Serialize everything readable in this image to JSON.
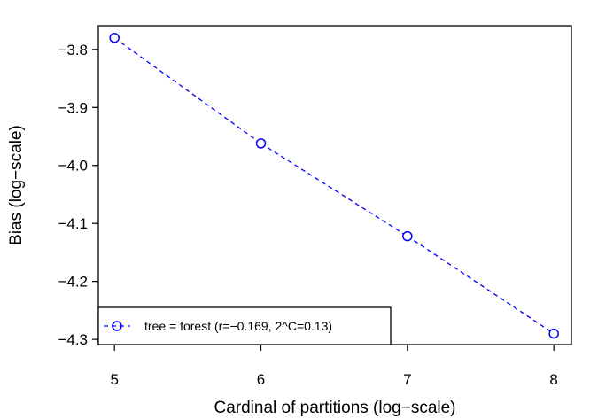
{
  "chart_data": {
    "type": "line",
    "xlabel": "Cardinal of partitions (log−scale)",
    "ylabel": "Bias (log−scale)",
    "xlim": [
      4.89,
      8.12
    ],
    "ylim": [
      -4.309,
      -3.759
    ],
    "x_ticks": [
      5,
      6,
      7,
      8
    ],
    "x_tick_labels": [
      "5",
      "6",
      "7",
      "8"
    ],
    "y_ticks": [
      -3.8,
      -3.9,
      -4.0,
      -4.1,
      -4.2,
      -4.3
    ],
    "y_tick_labels": [
      "−3.8",
      "−3.9",
      "−4.0",
      "−4.1",
      "−4.2",
      "−4.3"
    ],
    "grid": false,
    "legend_position": "bottom-left",
    "series": [
      {
        "name": "tree = forest (r=−0.169, 2^C=0.13)",
        "color": "#0000ff",
        "line_style": "dashed",
        "marker": "open-circle",
        "x": [
          5,
          6,
          7,
          8
        ],
        "y": [
          -3.78,
          -3.962,
          -4.122,
          -4.29
        ]
      }
    ]
  }
}
